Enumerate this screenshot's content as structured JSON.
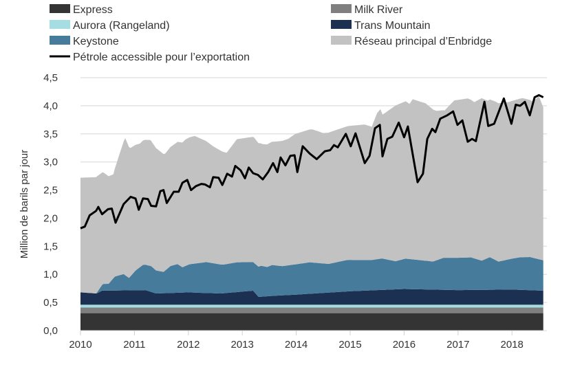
{
  "chart_data": {
    "type": "area",
    "stacked": true,
    "title": "",
    "xlabel": "",
    "ylabel": "Million de barils par jour",
    "xlim": [
      2010,
      2018.58
    ],
    "ylim": [
      0,
      4.5
    ],
    "y_ticks": [
      "0,0",
      "0,5",
      "1,0",
      "1,5",
      "2,0",
      "2,5",
      "3,0",
      "3,5",
      "4,0",
      "4,5"
    ],
    "y_tick_values": [
      0,
      0.5,
      1,
      1.5,
      2,
      2.5,
      3,
      3.5,
      4,
      4.5
    ],
    "x_ticks": [
      "2010",
      "2011",
      "2012",
      "2013",
      "2014",
      "2015",
      "2016",
      "2017",
      "2018"
    ],
    "grid": true,
    "legend_placement": "top",
    "series": [
      {
        "name": "Express",
        "color": "#343434",
        "points": [
          [
            2010,
            0.31
          ],
          [
            2018.58,
            0.31
          ]
        ]
      },
      {
        "name": "Milk River",
        "color": "#7f7f7f",
        "points": [
          [
            2010,
            0.1
          ],
          [
            2018.58,
            0.1
          ]
        ]
      },
      {
        "name": "Aurora (Rangeland)",
        "color": "#a6dde2",
        "points": [
          [
            2010,
            0.05
          ],
          [
            2018.58,
            0.05
          ]
        ]
      },
      {
        "name": "Trans Mountain",
        "color": "#1c3152",
        "points": [
          [
            2010,
            0.22
          ],
          [
            2010.3,
            0.2
          ],
          [
            2010.4,
            0.25
          ],
          [
            2011.2,
            0.26
          ],
          [
            2011.4,
            0.2
          ],
          [
            2012,
            0.22
          ],
          [
            2012.6,
            0.2
          ],
          [
            2013.2,
            0.25
          ],
          [
            2013.3,
            0.14
          ],
          [
            2013.6,
            0.16
          ],
          [
            2014,
            0.18
          ],
          [
            2015,
            0.24
          ],
          [
            2016,
            0.28
          ],
          [
            2017,
            0.26
          ],
          [
            2018,
            0.27
          ],
          [
            2018.58,
            0.25
          ]
        ]
      },
      {
        "name": "Keystone",
        "color": "#467b9c",
        "points": [
          [
            2010,
            0
          ],
          [
            2010.29,
            0
          ],
          [
            2010.42,
            0.12
          ],
          [
            2010.52,
            0.12
          ],
          [
            2010.64,
            0.25
          ],
          [
            2010.8,
            0.29
          ],
          [
            2010.9,
            0.22
          ],
          [
            2011.02,
            0.35
          ],
          [
            2011.16,
            0.45
          ],
          [
            2011.31,
            0.46
          ],
          [
            2011.4,
            0.41
          ],
          [
            2011.54,
            0.38
          ],
          [
            2011.67,
            0.48
          ],
          [
            2011.8,
            0.51
          ],
          [
            2011.89,
            0.45
          ],
          [
            2012.02,
            0.5
          ],
          [
            2012.33,
            0.55
          ],
          [
            2012.65,
            0.51
          ],
          [
            2012.9,
            0.53
          ],
          [
            2013.2,
            0.51
          ],
          [
            2013.35,
            0.55
          ],
          [
            2013.46,
            0.52
          ],
          [
            2013.55,
            0.55
          ],
          [
            2013.74,
            0.52
          ],
          [
            2014,
            0.54
          ],
          [
            2014.25,
            0.56
          ],
          [
            2014.6,
            0.51
          ],
          [
            2014.95,
            0.56
          ],
          [
            2015.4,
            0.54
          ],
          [
            2015.59,
            0.56
          ],
          [
            2015.84,
            0.5
          ],
          [
            2016.03,
            0.54
          ],
          [
            2016.54,
            0.5
          ],
          [
            2016.73,
            0.57
          ],
          [
            2017.24,
            0.58
          ],
          [
            2017.44,
            0.52
          ],
          [
            2017.59,
            0.58
          ],
          [
            2017.75,
            0.5
          ],
          [
            2017.95,
            0.54
          ],
          [
            2018.16,
            0.58
          ],
          [
            2018.33,
            0.59
          ],
          [
            2018.53,
            0.55
          ],
          [
            2018.58,
            0.54
          ]
        ]
      },
      {
        "name": "Réseau principal d’Enbridge",
        "color": "#c2c2c2",
        "points": [
          [
            2010,
            2.04
          ],
          [
            2010.3,
            2.07
          ],
          [
            2010.5,
            1.93
          ],
          [
            2010.61,
            1.85
          ],
          [
            2010.83,
            2.44
          ],
          [
            2010.93,
            2.28
          ],
          [
            2011.1,
            2.2
          ],
          [
            2011.29,
            2.24
          ],
          [
            2011.57,
            2.08
          ],
          [
            2011.77,
            2.16
          ],
          [
            2011.95,
            2.25
          ],
          [
            2012.12,
            2.27
          ],
          [
            2012.46,
            2.08
          ],
          [
            2012.71,
            1.98
          ],
          [
            2012.9,
            2.19
          ],
          [
            2013.22,
            2.23
          ],
          [
            2013.37,
            2.17
          ],
          [
            2013.6,
            2.2
          ],
          [
            2013.85,
            2.25
          ],
          [
            2013.98,
            2.32
          ],
          [
            2014.1,
            2.34
          ],
          [
            2014.3,
            2.37
          ],
          [
            2014.5,
            2.32
          ],
          [
            2014.7,
            2.35
          ],
          [
            2014.95,
            2.38
          ],
          [
            2015.27,
            2.41
          ],
          [
            2015.4,
            2.37
          ],
          [
            2015.5,
            2.6
          ],
          [
            2015.56,
            2.66
          ],
          [
            2015.6,
            2.56
          ],
          [
            2015.84,
            2.77
          ],
          [
            2016.03,
            2.8
          ],
          [
            2016.1,
            2.76
          ],
          [
            2016.16,
            2.85
          ],
          [
            2016.4,
            2.8
          ],
          [
            2016.6,
            2.66
          ],
          [
            2016.75,
            2.62
          ],
          [
            2016.93,
            2.8
          ],
          [
            2017.18,
            2.83
          ],
          [
            2017.3,
            2.78
          ],
          [
            2017.44,
            2.89
          ],
          [
            2017.55,
            2.8
          ],
          [
            2017.7,
            2.82
          ],
          [
            2017.95,
            2.8
          ],
          [
            2018.2,
            2.83
          ],
          [
            2018.39,
            2.78
          ],
          [
            2018.5,
            2.9
          ],
          [
            2018.58,
            2.72
          ]
        ]
      }
    ],
    "line": {
      "name": "Pétrole accessible pour l’exportation",
      "color": "#000000",
      "points": [
        [
          2010,
          1.82
        ],
        [
          2010.08,
          1.85
        ],
        [
          2010.17,
          2.05
        ],
        [
          2010.29,
          2.13
        ],
        [
          2010.33,
          2.2
        ],
        [
          2010.4,
          2.07
        ],
        [
          2010.51,
          2.16
        ],
        [
          2010.58,
          2.17
        ],
        [
          2010.65,
          1.92
        ],
        [
          2010.8,
          2.25
        ],
        [
          2010.93,
          2.38
        ],
        [
          2011.02,
          2.35
        ],
        [
          2011.08,
          2.15
        ],
        [
          2011.16,
          2.35
        ],
        [
          2011.25,
          2.34
        ],
        [
          2011.31,
          2.22
        ],
        [
          2011.4,
          2.21
        ],
        [
          2011.48,
          2.48
        ],
        [
          2011.54,
          2.5
        ],
        [
          2011.6,
          2.27
        ],
        [
          2011.73,
          2.47
        ],
        [
          2011.82,
          2.47
        ],
        [
          2011.89,
          2.63
        ],
        [
          2011.98,
          2.68
        ],
        [
          2012.05,
          2.5
        ],
        [
          2012.14,
          2.57
        ],
        [
          2012.24,
          2.61
        ],
        [
          2012.31,
          2.6
        ],
        [
          2012.4,
          2.55
        ],
        [
          2012.46,
          2.73
        ],
        [
          2012.56,
          2.72
        ],
        [
          2012.63,
          2.59
        ],
        [
          2012.72,
          2.79
        ],
        [
          2012.81,
          2.74
        ],
        [
          2012.87,
          2.93
        ],
        [
          2012.97,
          2.85
        ],
        [
          2013.05,
          2.71
        ],
        [
          2013.12,
          2.9
        ],
        [
          2013.2,
          2.8
        ],
        [
          2013.29,
          2.77
        ],
        [
          2013.38,
          2.69
        ],
        [
          2013.48,
          2.82
        ],
        [
          2013.57,
          2.98
        ],
        [
          2013.65,
          2.82
        ],
        [
          2013.71,
          3.08
        ],
        [
          2013.8,
          2.94
        ],
        [
          2013.89,
          3.11
        ],
        [
          2013.97,
          3.12
        ],
        [
          2014.02,
          2.82
        ],
        [
          2014.12,
          3.28
        ],
        [
          2014.25,
          3.15
        ],
        [
          2014.38,
          3.05
        ],
        [
          2014.53,
          3.19
        ],
        [
          2014.63,
          3.21
        ],
        [
          2014.7,
          3.3
        ],
        [
          2014.77,
          3.26
        ],
        [
          2014.92,
          3.5
        ],
        [
          2015.01,
          3.28
        ],
        [
          2015.1,
          3.51
        ],
        [
          2015.27,
          2.98
        ],
        [
          2015.36,
          3.11
        ],
        [
          2015.46,
          3.6
        ],
        [
          2015.55,
          3.66
        ],
        [
          2015.6,
          3.1
        ],
        [
          2015.69,
          3.41
        ],
        [
          2015.78,
          3.45
        ],
        [
          2015.9,
          3.7
        ],
        [
          2016,
          3.44
        ],
        [
          2016.07,
          3.63
        ],
        [
          2016.25,
          2.64
        ],
        [
          2016.35,
          2.79
        ],
        [
          2016.43,
          3.41
        ],
        [
          2016.52,
          3.59
        ],
        [
          2016.58,
          3.53
        ],
        [
          2016.67,
          3.77
        ],
        [
          2016.8,
          3.83
        ],
        [
          2016.91,
          3.9
        ],
        [
          2016.99,
          3.66
        ],
        [
          2017.08,
          3.74
        ],
        [
          2017.18,
          3.36
        ],
        [
          2017.26,
          3.41
        ],
        [
          2017.33,
          3.37
        ],
        [
          2017.49,
          4.07
        ],
        [
          2017.56,
          3.64
        ],
        [
          2017.67,
          3.68
        ],
        [
          2017.85,
          4.13
        ],
        [
          2017.99,
          3.68
        ],
        [
          2018.07,
          4.02
        ],
        [
          2018.15,
          4.0
        ],
        [
          2018.24,
          4.07
        ],
        [
          2018.33,
          3.83
        ],
        [
          2018.42,
          4.15
        ],
        [
          2018.5,
          4.19
        ],
        [
          2018.58,
          4.15
        ]
      ]
    }
  }
}
